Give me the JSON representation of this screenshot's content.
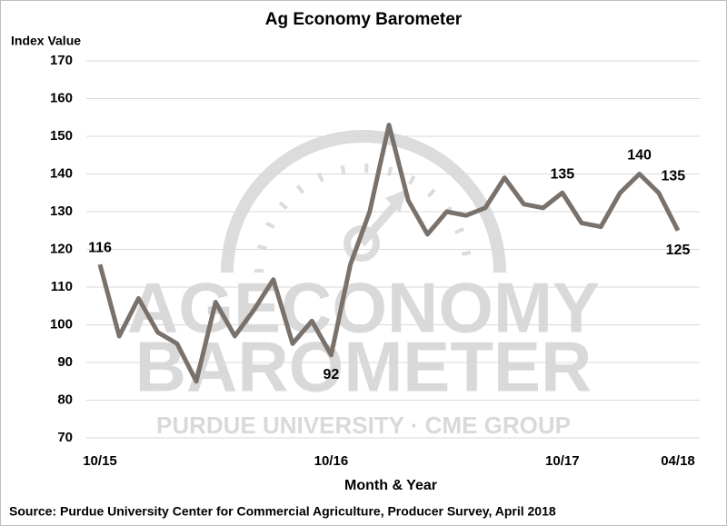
{
  "chart_data": {
    "type": "line",
    "title": "Ag Economy Barometer",
    "y_label": "Index Value",
    "x_label": "Month & Year",
    "source": "Source: Purdue University Center for Commercial Agriculture, Producer Survey, April 2018",
    "watermark": {
      "line1": "AGECONOMY",
      "line2": "BAROMETER",
      "line3": "PURDUE UNIVERSITY · CME GROUP"
    },
    "categories": [
      "10/15",
      null,
      null,
      null,
      null,
      null,
      null,
      null,
      null,
      null,
      null,
      null,
      "10/16",
      null,
      null,
      null,
      null,
      null,
      null,
      null,
      null,
      null,
      null,
      null,
      "10/17",
      null,
      null,
      null,
      null,
      null,
      "04/18"
    ],
    "values": [
      116,
      97,
      107,
      98,
      95,
      85,
      106,
      97,
      104,
      112,
      95,
      101,
      92,
      116,
      130,
      153,
      133,
      124,
      130,
      129,
      131,
      139,
      132,
      131,
      135,
      127,
      126,
      135,
      140,
      135,
      125
    ],
    "value_labels": [
      "116",
      null,
      null,
      null,
      null,
      null,
      null,
      null,
      null,
      null,
      null,
      null,
      "92",
      null,
      null,
      null,
      null,
      null,
      null,
      null,
      null,
      null,
      null,
      null,
      "135",
      null,
      null,
      null,
      "140",
      "135",
      "125"
    ],
    "color": "#7a716b",
    "ylim": [
      70,
      170
    ],
    "yticks": [
      70,
      80,
      90,
      100,
      110,
      120,
      130,
      140,
      150,
      160,
      170
    ],
    "grid": true
  }
}
